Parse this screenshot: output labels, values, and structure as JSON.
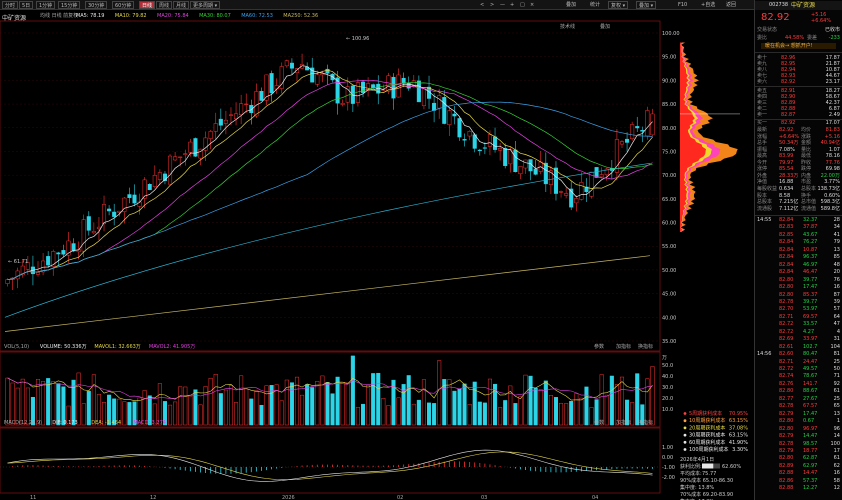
{
  "toolbar": {
    "left": [
      "分时",
      "5日",
      "1分钟",
      "15分钟",
      "30分钟",
      "60分钟",
      "日线",
      "周线",
      "月线",
      "更多周期 ▾"
    ],
    "active_index": 6,
    "right": [
      "叠加",
      "统计",
      "画线",
      "F10",
      "标记",
      "+自选",
      "返回"
    ],
    "right_mid": [
      "复权 ▾",
      "叠加 ▾"
    ],
    "nav": [
      "<",
      ">",
      "—",
      "+",
      "□",
      "×"
    ]
  },
  "chart": {
    "stock_label": "中矿资源",
    "ma_legend": [
      {
        "text": "均线 日线 前复权",
        "color": "#aaaaaa"
      },
      {
        "text": "MA5: 78.19",
        "color": "#e8e8e8"
      },
      {
        "text": "MA10: 79.82",
        "color": "#e6d84a"
      },
      {
        "text": "MA20: 75.84",
        "color": "#e040e0"
      },
      {
        "text": "MA30: 80.07",
        "color": "#34d034"
      },
      {
        "text": "MA60: 72.53",
        "color": "#3aa0e8"
      },
      {
        "text": "MA250: 52.36",
        "color": "#c8b860"
      }
    ],
    "top_right_btns": [
      "技术线",
      "叠加"
    ],
    "price_axis": [
      "100.00",
      "95.00",
      "90.00",
      "85.00",
      "80.00",
      "75.00",
      "70.00",
      "65.00",
      "60.00",
      "55.00",
      "50.00",
      "45.00",
      "40.00",
      "35.00"
    ],
    "high_mark": "← 100.96",
    "low_mark": "← 61.71",
    "volume": {
      "legend": [
        {
          "text": "VOL(5,10)",
          "color": "#aaaaaa"
        },
        {
          "text": "VOLUME: 50.336万",
          "color": "#e8e8e8"
        },
        {
          "text": "MAVOL1: 32.663万",
          "color": "#e6d84a"
        },
        {
          "text": "MAVOL2: 41.905万",
          "color": "#e040e0"
        }
      ],
      "axis": [
        "万",
        "50.0",
        "40.0",
        "30.0",
        "20.0",
        "10.0"
      ],
      "btns": [
        "参数",
        "加指标",
        "换指标"
      ]
    },
    "macd": {
      "legend": [
        {
          "text": "MACD(12,26,9)",
          "color": "#aaaaaa"
        },
        {
          "text": "DIF: 0.173",
          "color": "#e8e8e8"
        },
        {
          "text": "DEA: -1.464",
          "color": "#e6d84a"
        },
        {
          "text": "MACD: 3.274",
          "color": "#e040e0"
        }
      ],
      "axis": [
        "1.00",
        "0.00",
        "-1.00",
        "-2.00"
      ],
      "btns": [
        "参数",
        "加指标",
        "换指标"
      ]
    },
    "date_axis": [
      "11",
      "12",
      "2026",
      "02",
      "03",
      "04"
    ]
  },
  "cost_panel": {
    "rows": [
      {
        "label": "5周期获利成本",
        "value": "70.95%",
        "color": "#ff4040"
      },
      {
        "label": "10周期获利成本",
        "value": "63.15%",
        "color": "#ffa040"
      },
      {
        "label": "20周期获利成本",
        "value": "37.08%",
        "color": "#e6d84a"
      },
      {
        "label": "30周期获利成本",
        "value": "63.15%",
        "color": "#e6e6e6"
      },
      {
        "label": "60周期获利成本",
        "value": "41.90%",
        "color": "#e6e6e6"
      },
      {
        "label": "100周期获利成本",
        "value": "3.30%",
        "color": "#e6e6e6"
      }
    ],
    "date": "2026年4月1日",
    "profit_label": "获利比例:",
    "profit_value": "62.60%",
    "avg_label": "平均成本:",
    "avg_value": "75.77",
    "conc90": "90%成本 65.10-86.30",
    "conc90_pct": "集中度: 13.8%",
    "conc70": "70%成本 69.20-83.90",
    "conc70_pct": "集中度: 17.2%",
    "mode": "筹码分布"
  },
  "quote": {
    "code": "002738",
    "name": "中矿资源",
    "price": "82.92",
    "change": "+5.16",
    "pct": "+6.64%",
    "status_label": "交易状态",
    "status": "已收市",
    "ratio_label": "委比",
    "ratio": "44.58%",
    "diff_label": "委差",
    "diff": "-233",
    "banner": "暖在机会→ 想抓开户!",
    "asks": [
      {
        "l": "卖十",
        "p": "82.96",
        "v": "17.87"
      },
      {
        "l": "卖九",
        "p": "82.95",
        "v": "21.87"
      },
      {
        "l": "卖八",
        "p": "82.94",
        "v": "10.87"
      },
      {
        "l": "卖七",
        "p": "82.93",
        "v": "44.67"
      },
      {
        "l": "卖六",
        "p": "82.92",
        "v": "23.17"
      }
    ],
    "asks2": [
      {
        "l": "卖五",
        "p": "82.91",
        "v": "18.27"
      },
      {
        "l": "卖四",
        "p": "82.90",
        "v": "58.67"
      },
      {
        "l": "卖三",
        "p": "82.89",
        "v": "42.37"
      },
      {
        "l": "卖二",
        "p": "82.88",
        "v": "6.87"
      },
      {
        "l": "卖一",
        "p": "82.87",
        "v": "2.49"
      }
    ],
    "bid1": {
      "l": "买一",
      "p": "82.92",
      "v": "17.07"
    },
    "stats": [
      [
        "最新",
        "82.92",
        "均价",
        "81.83"
      ],
      [
        "涨幅",
        "+6.64%",
        "涨跌",
        "+5.16"
      ],
      [
        "总手",
        "50.34万",
        "金额",
        "40.94亿"
      ],
      [
        "振幅",
        "7.08%",
        "量比",
        "1.07"
      ],
      [
        "最高",
        "83.99",
        "最低",
        "78.16"
      ],
      [
        "今开",
        "79.97",
        "昨收",
        "77.76"
      ],
      [
        "涨停",
        "85.54",
        "跌停",
        "69.98"
      ],
      [
        "外盘",
        "28.33万",
        "内盘",
        "22.00万"
      ],
      [
        "净值",
        "16.88",
        "市盈",
        "3.77%"
      ],
      [
        "每股收益",
        "0.634",
        "总股本",
        "138.73亿"
      ],
      [
        "股本",
        "8.58",
        "换手",
        "0.60%"
      ],
      [
        "总股本",
        "7.215亿",
        "总市值",
        "598.3亿"
      ],
      [
        "流通股",
        "7.112亿",
        "流通值",
        "589.8亿"
      ]
    ],
    "ticks": [
      [
        "14:55",
        "82.84",
        "32.37",
        "28"
      ],
      [
        "",
        "82.83",
        "37.87",
        "34"
      ],
      [
        "",
        "82.85",
        "43.67",
        "41"
      ],
      [
        "",
        "82.84",
        "76.27",
        "79"
      ],
      [
        "",
        "82.84",
        "10.87",
        "13"
      ],
      [
        "",
        "82.84",
        "96.37",
        "85"
      ],
      [
        "",
        "82.84",
        "46.97",
        "48"
      ],
      [
        "",
        "82.84",
        "46.47",
        "20"
      ],
      [
        "",
        "82.80",
        "39.77",
        "76"
      ],
      [
        "",
        "82.80",
        "17.47",
        "16"
      ],
      [
        "",
        "82.80",
        "85.37",
        "87"
      ],
      [
        "",
        "82.78",
        "39.77",
        "39"
      ],
      [
        "",
        "82.70",
        "53.97",
        "57"
      ],
      [
        "",
        "82.71",
        "69.57",
        "64"
      ],
      [
        "",
        "82.72",
        "33.57",
        "47"
      ],
      [
        "",
        "82.72",
        "4.27",
        "4"
      ],
      [
        "",
        "82.69",
        "33.97",
        "31"
      ],
      [
        "",
        "82.61",
        "102.7",
        "104"
      ],
      [
        "14:56",
        "82.60",
        "80.47",
        "81"
      ],
      [
        "",
        "82.71",
        "24.47",
        "25"
      ],
      [
        "",
        "82.72",
        "49.57",
        "50"
      ],
      [
        "",
        "82.74",
        "78.67",
        "71"
      ],
      [
        "",
        "82.76",
        "141.7",
        "92"
      ],
      [
        "",
        "82.80",
        "88.67",
        "61"
      ],
      [
        "",
        "82.77",
        "27.67",
        "25"
      ],
      [
        "",
        "82.78",
        "67.57",
        "65"
      ],
      [
        "",
        "82.79",
        "17.47",
        "13"
      ],
      [
        "",
        "82.80",
        "0.67",
        "1"
      ],
      [
        "",
        "82.80",
        "96.97",
        "96"
      ],
      [
        "",
        "82.79",
        "14.47",
        "14"
      ],
      [
        "",
        "82.78",
        "98.57",
        "100"
      ],
      [
        "",
        "82.79",
        "18.77",
        "17"
      ],
      [
        "",
        "82.80",
        "62.87",
        "61"
      ],
      [
        "",
        "82.89",
        "62.97",
        "62"
      ],
      [
        "",
        "82.88",
        "14.47",
        "16"
      ],
      [
        "",
        "82.86",
        "57.37",
        "58"
      ],
      [
        "",
        "82.88",
        "12.27",
        "12"
      ]
    ]
  }
}
